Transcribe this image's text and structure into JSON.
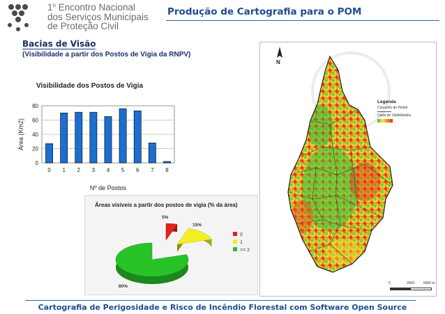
{
  "header": {
    "logo_line1_sup": "o",
    "logo_line1_prefix": "1",
    "logo_line1": "Encontro Nacional",
    "logo_line2": "dos Serviços Municipais",
    "logo_line3": "de Proteção Civil",
    "title": "Produção de Cartografia para o POM"
  },
  "section": {
    "title": "Bacias de Visão",
    "subtitle": "(Visibilidade a partir dos Postos de Vigia da RNPV)"
  },
  "chart_data": [
    {
      "type": "bar",
      "title": "Visibilidade dos Postos de Vigia",
      "xlabel": "Nº de Postos",
      "ylabel": "Área (Km2)",
      "categories": [
        "0",
        "1",
        "2",
        "3",
        "4",
        "5",
        "6",
        "7",
        "8"
      ],
      "values": [
        27,
        70,
        71,
        71,
        65,
        76,
        73,
        28,
        2
      ],
      "ylim": [
        0,
        80
      ],
      "yticks": [
        "0",
        "20",
        "40",
        "60",
        "80"
      ],
      "grid": true,
      "bar_color": "#1a6fd0"
    },
    {
      "type": "pie",
      "title": "Áreas visíveis a partir dos postos de vigia (% da área)",
      "slices": [
        {
          "label": "0",
          "value": 5,
          "pct_label": "5%",
          "color": "#e2231a"
        },
        {
          "label": "1",
          "value": 15,
          "pct_label": "15%",
          "color": "#f2ef24"
        },
        {
          "label": ">= 2",
          "value": 80,
          "pct_label": "80%",
          "color": "#27c327"
        }
      ]
    }
  ],
  "map": {
    "north_label": "N",
    "legend_title": "Legenda",
    "legend_item1": "Concelho de Pinhel",
    "legend_item2": "Carta de Visibilidades",
    "scale_0": "0",
    "scale_1": "2500",
    "scale_2": "5000 m"
  },
  "footer": {
    "text": "Cartografia de Perigosidade e Risco de Incêndio Florestal com Software Open Source"
  }
}
